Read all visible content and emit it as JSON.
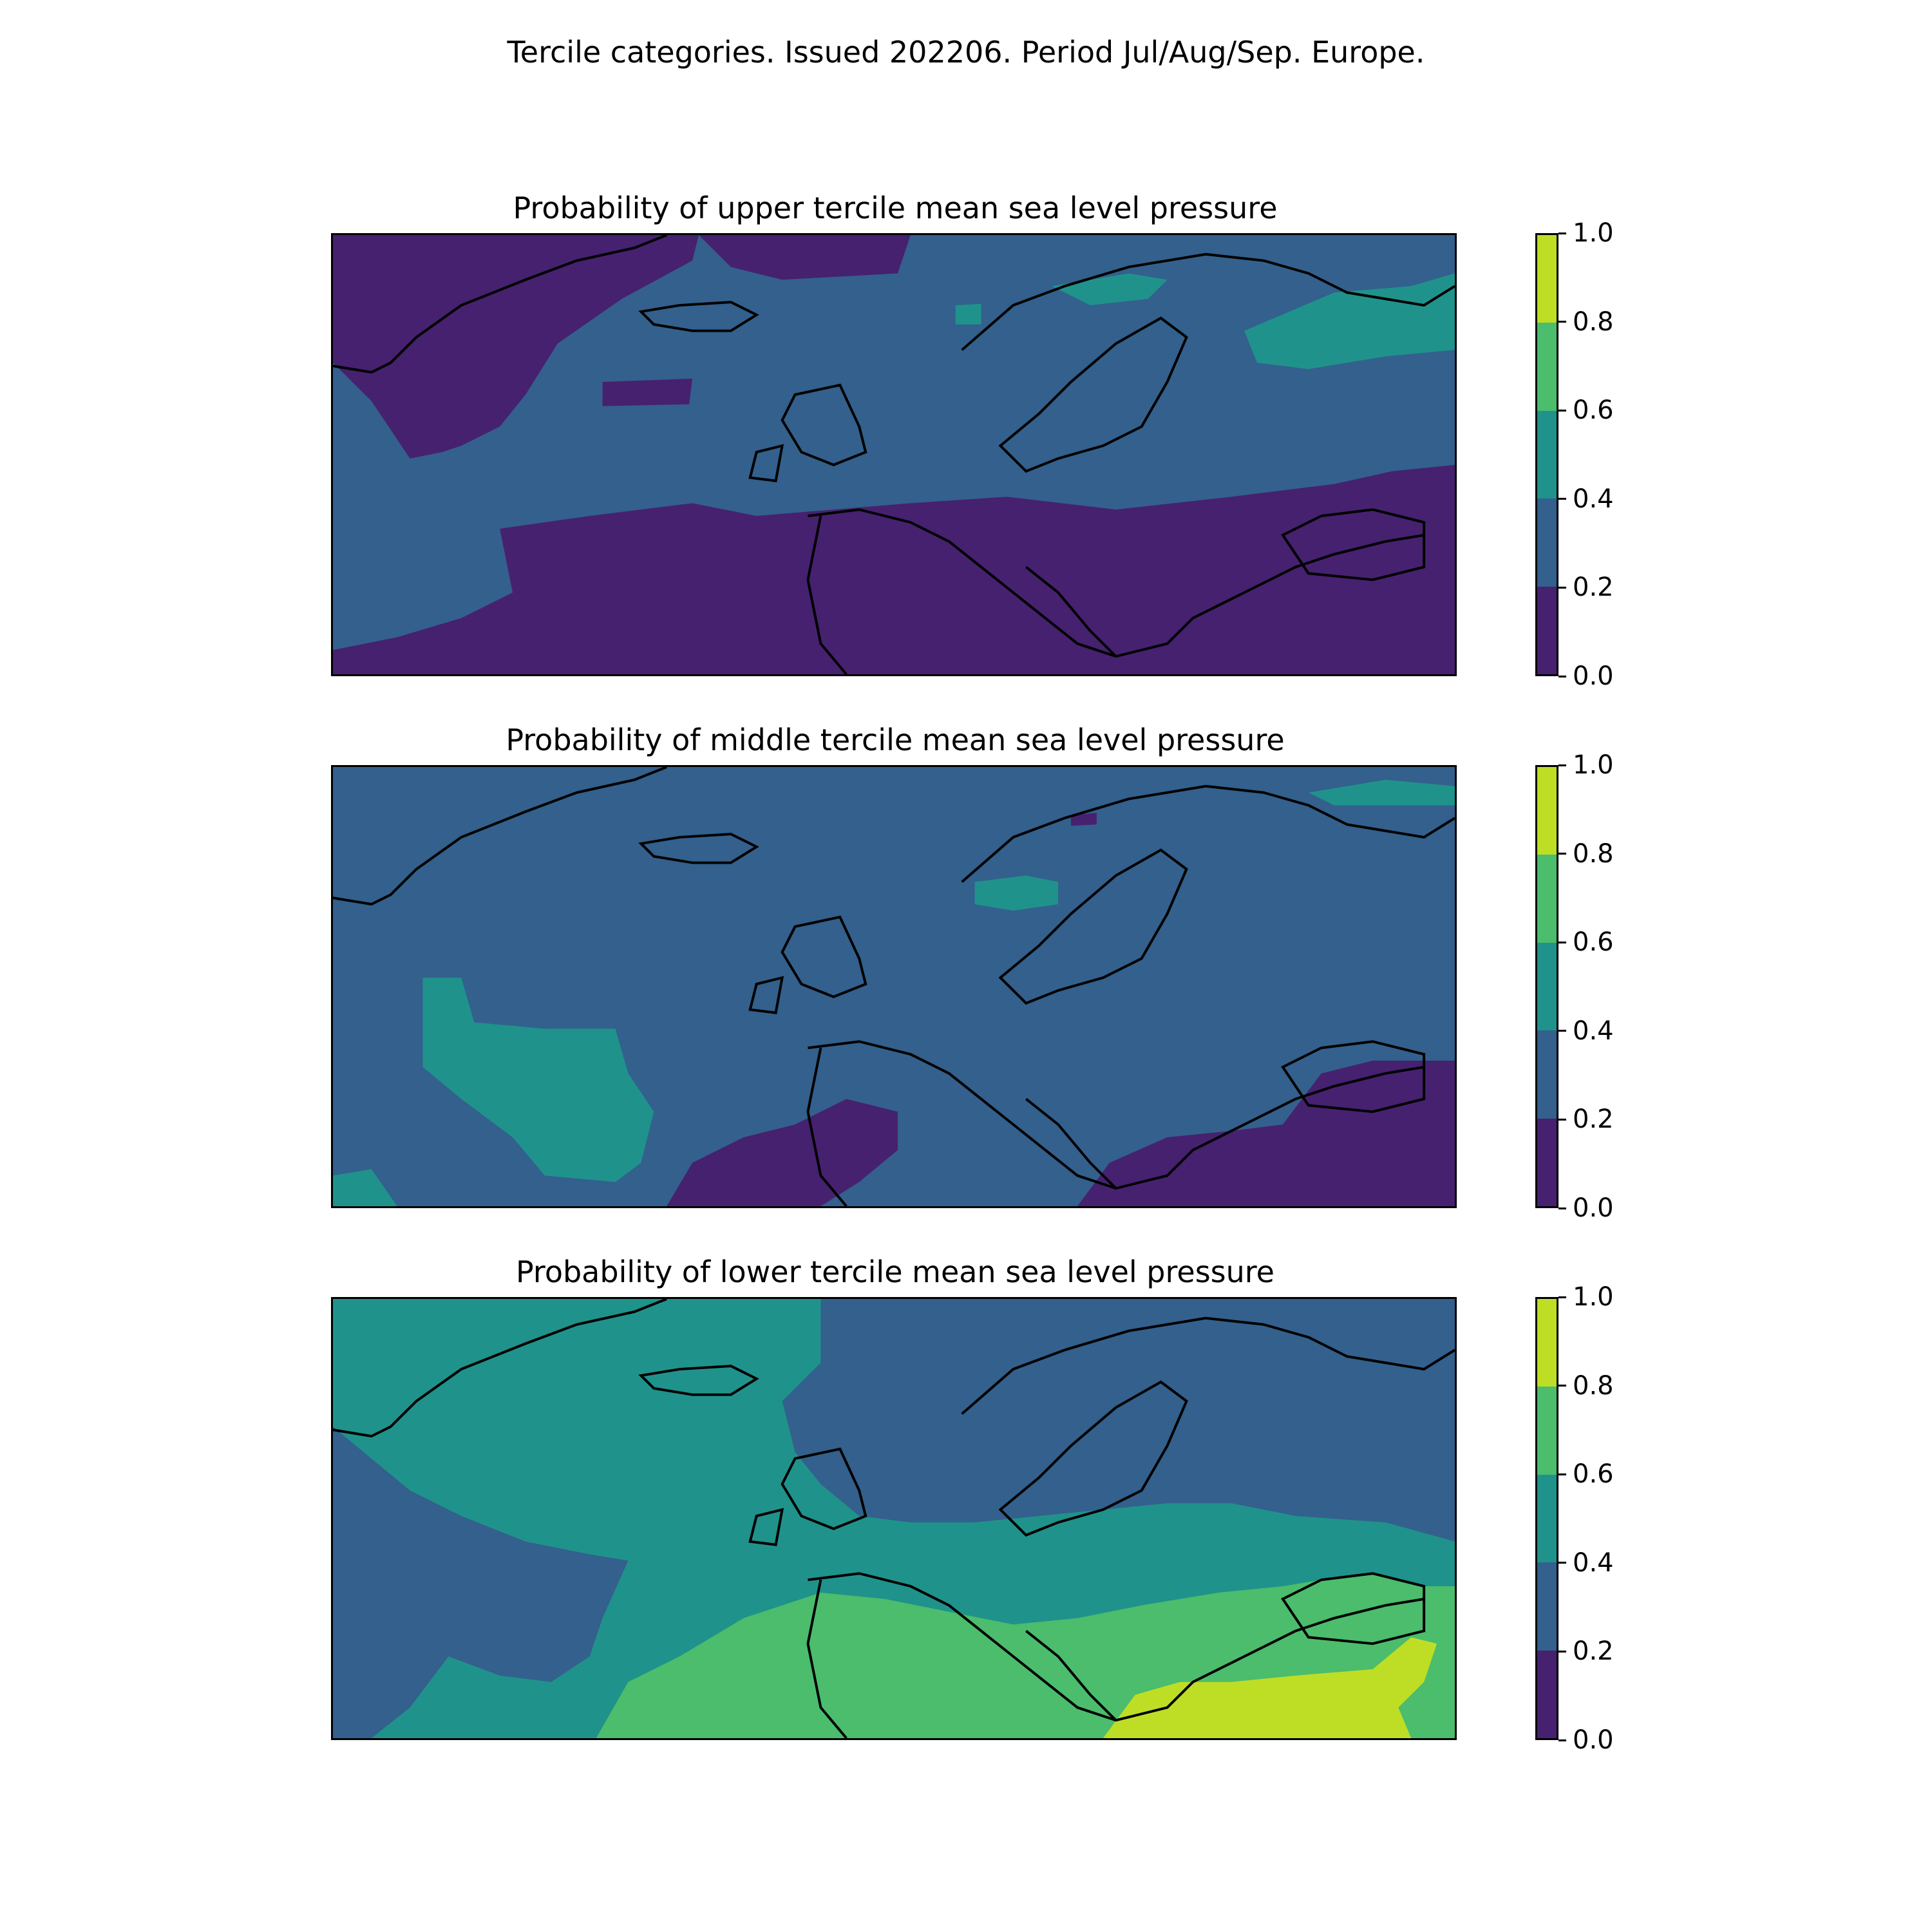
{
  "figure_title": "Tercile categories. Issued 202206. Period Jul/Aug/Sep. Europe.",
  "colorbar": {
    "levels": [
      0.0,
      0.2,
      0.4,
      0.6,
      0.8,
      1.0
    ],
    "tick_labels": [
      "0.0",
      "0.2",
      "0.4",
      "0.6",
      "0.8",
      "1.0"
    ],
    "colors": [
      "#46216f",
      "#33608c",
      "#20928c",
      "#4bbd6c",
      "#bede25"
    ]
  },
  "map_extent": "North Atlantic and Europe, Greenland to Caspian, ~30N to ~80N",
  "chart_data": [
    {
      "type": "heatmap",
      "title": "Probability of upper tercile mean sea level pressure",
      "value_range": [
        0.0,
        1.0
      ],
      "background_category": "0.2-0.4",
      "regions": [
        {
          "area": "Greenland / northwest Atlantic",
          "category": "0.0-0.2"
        },
        {
          "area": "Central North Atlantic",
          "category": "0.2-0.4"
        },
        {
          "area": "Northern Scandinavia coast / Barents",
          "category": "0.4-0.6"
        },
        {
          "area": "Northwest Russia",
          "category": "0.4-0.6"
        },
        {
          "area": "Iberia, Mediterranean, Black Sea, Turkey",
          "category": "0.0-0.2"
        },
        {
          "area": "Subtropical Atlantic south-west",
          "category": "0.2-0.4"
        }
      ]
    },
    {
      "type": "heatmap",
      "title": "Probability of middle tercile mean sea level pressure",
      "value_range": [
        0.0,
        1.0
      ],
      "background_category": "0.2-0.4",
      "regions": [
        {
          "area": "Most of domain",
          "category": "0.2-0.4"
        },
        {
          "area": "Atlantic west of Iberia",
          "category": "0.4-0.6"
        },
        {
          "area": "Southern Norway",
          "category": "0.4-0.6"
        },
        {
          "area": "Barents coast",
          "category": "0.4-0.6"
        },
        {
          "area": "Iberia interior",
          "category": "0.0-0.2"
        },
        {
          "area": "Greece, Turkey, Black Sea region",
          "category": "0.0-0.2"
        }
      ]
    },
    {
      "type": "heatmap",
      "title": "Probability of lower tercile mean sea level pressure",
      "value_range": [
        0.0,
        1.0
      ],
      "background_category": "0.4-0.6",
      "regions": [
        {
          "area": "Greenland / North Atlantic",
          "category": "0.4-0.6"
        },
        {
          "area": "Scandinavia, Baltic, northern Russia",
          "category": "0.2-0.4"
        },
        {
          "area": "Atlantic southwest",
          "category": "0.2-0.4"
        },
        {
          "area": "Iberia, Mediterranean, Black Sea",
          "category": "0.6-0.8"
        },
        {
          "area": "Greece, Aegean, Turkey",
          "category": "0.8-1.0"
        }
      ]
    }
  ]
}
